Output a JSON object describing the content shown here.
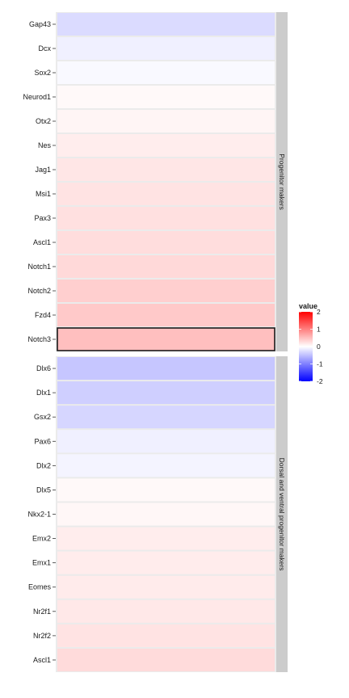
{
  "chart_data": {
    "type": "heatmap",
    "title": "",
    "xlabel": "",
    "ylabel": "",
    "facets": [
      {
        "strip_label": "Progenitor makers",
        "rows": [
          {
            "label": "Gap43",
            "value": -0.28
          },
          {
            "label": "Dcx",
            "value": -0.12
          },
          {
            "label": "Sox2",
            "value": -0.05
          },
          {
            "label": "Neurod1",
            "value": 0.05
          },
          {
            "label": "Otx2",
            "value": 0.08
          },
          {
            "label": "Nes",
            "value": 0.14
          },
          {
            "label": "Jag1",
            "value": 0.2
          },
          {
            "label": "Msi1",
            "value": 0.22
          },
          {
            "label": "Pax3",
            "value": 0.24
          },
          {
            "label": "Ascl1",
            "value": 0.27
          },
          {
            "label": "Notch1",
            "value": 0.3
          },
          {
            "label": "Notch2",
            "value": 0.38
          },
          {
            "label": "Fzd4",
            "value": 0.42
          },
          {
            "label": "Notch3",
            "value": 0.5,
            "highlighted": true
          }
        ]
      },
      {
        "strip_label": "Dorsal and ventral progenitor makers",
        "rows": [
          {
            "label": "Dlx6",
            "value": -0.45
          },
          {
            "label": "Dlx1",
            "value": -0.38
          },
          {
            "label": "Gsx2",
            "value": -0.32
          },
          {
            "label": "Pax6",
            "value": -0.12
          },
          {
            "label": "Dlx2",
            "value": -0.09
          },
          {
            "label": "Dlx5",
            "value": 0.05
          },
          {
            "label": "Nkx2-1",
            "value": 0.06
          },
          {
            "label": "Emx2",
            "value": 0.14
          },
          {
            "label": "Emx1",
            "value": 0.15
          },
          {
            "label": "Eomes",
            "value": 0.16
          },
          {
            "label": "Nr2f1",
            "value": 0.18
          },
          {
            "label": "Nr2f2",
            "value": 0.22
          },
          {
            "label": "Ascl1",
            "value": 0.28
          }
        ]
      }
    ],
    "legend": {
      "title": "value",
      "position": "right",
      "ticks": [
        2,
        1,
        0,
        -1,
        -2
      ],
      "range": [
        -2,
        2
      ],
      "low_color": "#0000ff",
      "mid_color": "#ffffff",
      "high_color": "#ff0000"
    },
    "panel_background": "#ebebeb",
    "strip_background": "#cccccc",
    "highlight_color": "#1a1a1a"
  }
}
